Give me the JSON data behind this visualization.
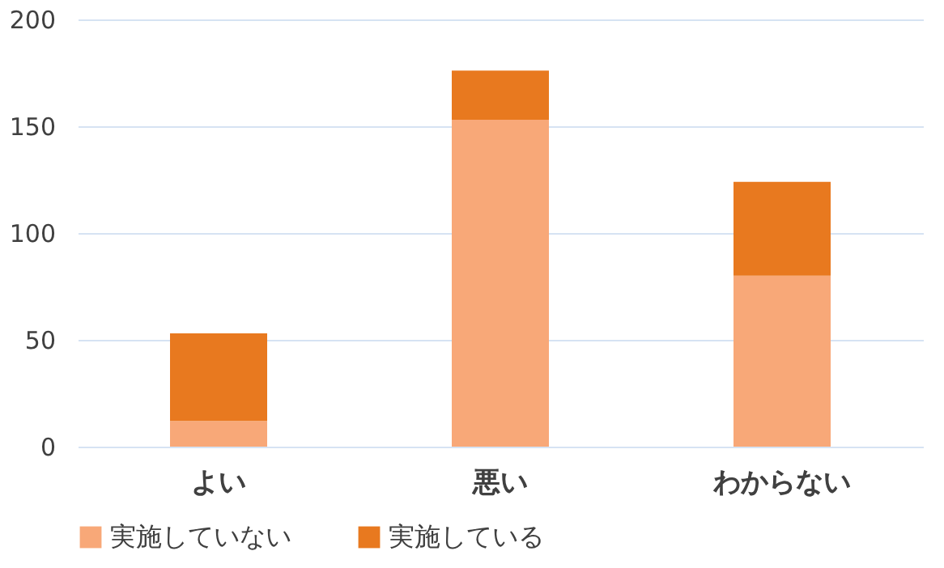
{
  "chart_data": {
    "type": "bar",
    "stacked": true,
    "categories": [
      "よい",
      "悪い",
      "わからない"
    ],
    "series": [
      {
        "name": "実施していない",
        "color": "#f8a878",
        "values": [
          12,
          153,
          80
        ]
      },
      {
        "name": "実施している",
        "color": "#e8791f",
        "values": [
          41,
          23,
          44
        ]
      }
    ],
    "ylim": [
      0,
      200
    ],
    "yticks": [
      0,
      50,
      100,
      150,
      200
    ],
    "grid": "y",
    "legend": "bottom"
  }
}
